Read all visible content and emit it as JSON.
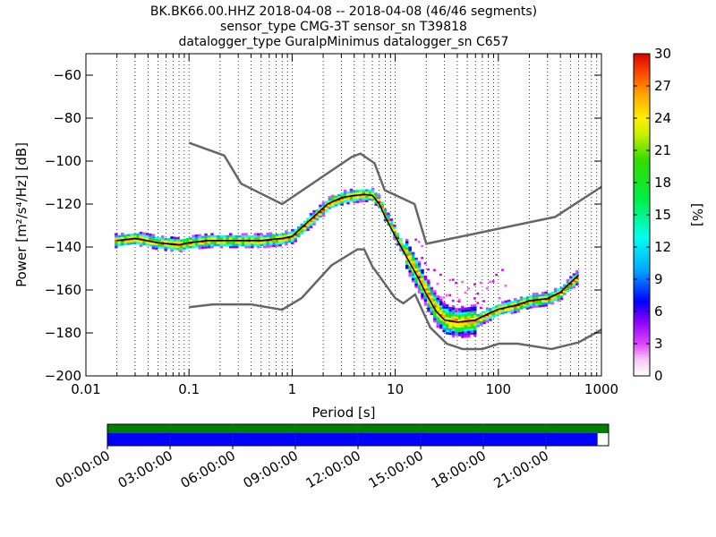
{
  "chart_data": {
    "type": "heatmap",
    "title_lines": [
      "BK.BK66.00.HHZ   2018-04-08 -- 2018-04-08  (46/46 segments)",
      "sensor_type CMG-3T sensor_sn T39818",
      "datalogger_type GuralpMinimus datalogger_sn C657"
    ],
    "xlabel": "Period [s]",
    "ylabel": "Power [m²/s⁴/Hz] [dB]",
    "x_scale": "log",
    "xlim": [
      0.01,
      1000
    ],
    "ylim": [
      -200,
      -50
    ],
    "xticks": [
      0.01,
      0.1,
      1,
      10,
      100,
      1000
    ],
    "xtick_labels": [
      "0.01",
      "0.1",
      "1",
      "10",
      "100",
      "1000"
    ],
    "yticks": [
      -200,
      -180,
      -160,
      -140,
      -120,
      -100,
      -80,
      -60
    ],
    "ytick_labels": [
      "−200",
      "−180",
      "−160",
      "−140",
      "−120",
      "−100",
      "−80",
      "−60"
    ],
    "grid": "dotted vertical",
    "colorbar": {
      "label": "[%]",
      "range": [
        0,
        30
      ],
      "ticks": [
        0,
        3,
        6,
        9,
        12,
        15,
        18,
        21,
        24,
        27,
        30
      ],
      "tick_labels": [
        "0",
        "3",
        "6",
        "9",
        "12",
        "15",
        "18",
        "21",
        "24",
        "27",
        "30"
      ]
    },
    "mode_line": {
      "name": "mode",
      "color": "#000000",
      "x": [
        0.02,
        0.03,
        0.05,
        0.08,
        0.1,
        0.15,
        0.3,
        0.5,
        0.8,
        1.0,
        1.3,
        1.7,
        2.2,
        3.0,
        4.0,
        5.0,
        6.0,
        7.0,
        8.0,
        10.0,
        13.0,
        17.0,
        20.0,
        25.0,
        30.0,
        40.0,
        60.0,
        80.0,
        100.0,
        150.0,
        200.0,
        300.0,
        400.0,
        600.0
      ],
      "y": [
        -137,
        -136,
        -138,
        -139,
        -138,
        -137,
        -137,
        -137,
        -136,
        -135,
        -130,
        -125,
        -120,
        -117,
        -116,
        -115.5,
        -116,
        -120,
        -126,
        -135,
        -145,
        -155,
        -162,
        -170,
        -174,
        -175,
        -174,
        -171,
        -169,
        -167,
        -165,
        -164,
        -161,
        -153
      ]
    },
    "noise_models": [
      {
        "name": "NHNM",
        "color": "#666666",
        "x": [
          0.1,
          0.22,
          0.32,
          0.8,
          3.8,
          4.6,
          6.3,
          7.9,
          15.4,
          20.0,
          354.8,
          1000.0
        ],
        "y": [
          -91.5,
          -97.4,
          -110.5,
          -120.0,
          -98.0,
          -96.5,
          -101.0,
          -113.5,
          -120.0,
          -138.5,
          -126.0,
          -112.0
        ]
      },
      {
        "name": "NLNM",
        "color": "#666666",
        "x": [
          0.1,
          0.17,
          0.4,
          0.8,
          1.24,
          2.4,
          4.3,
          5.0,
          6.0,
          10.0,
          12.0,
          15.6,
          21.9,
          31.6,
          45.0,
          70.0,
          101.0,
          154.0,
          328.0,
          600.0,
          1000.0
        ],
        "y": [
          -168.0,
          -166.7,
          -166.7,
          -169.2,
          -163.7,
          -148.6,
          -141.1,
          -141.1,
          -149.0,
          -163.8,
          -166.2,
          -162.1,
          -177.5,
          -185.0,
          -187.5,
          -187.5,
          -185.0,
          -185.0,
          -187.5,
          -184.4,
          -178.5
        ]
      }
    ],
    "coverage": {
      "tick_labels": [
        "00:00:00",
        "03:00:00",
        "06:00:00",
        "09:00:00",
        "12:00:00",
        "15:00:00",
        "18:00:00",
        "21:00:00"
      ],
      "top_bar": {
        "color": "#008000",
        "fraction": 1.0
      },
      "bottom_bar": {
        "color": "#0000ff",
        "fraction": 0.978
      }
    }
  }
}
